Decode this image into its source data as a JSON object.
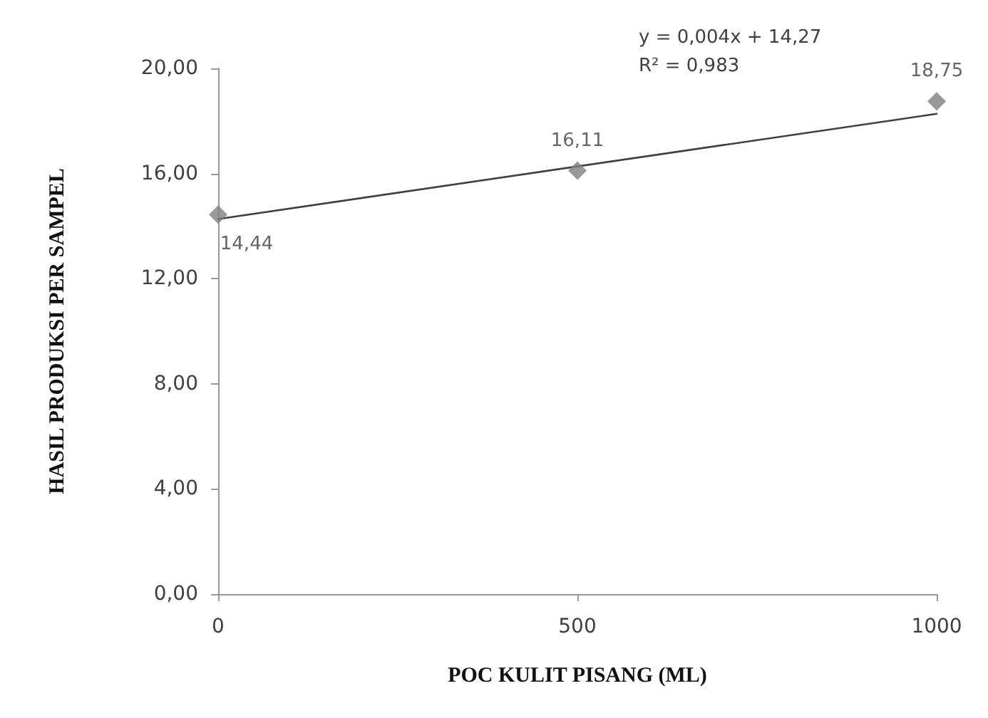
{
  "chart_data": {
    "type": "scatter",
    "xlabel": "POC KULIT PISANG (ML)",
    "ylabel": "HASIL PRODUKSI PER SAMPEL",
    "x": [
      0,
      500,
      1000
    ],
    "series": [
      {
        "color": "#7f7f7f",
        "values": [
          14.44,
          16.11,
          18.75
        ],
        "value_labels": [
          "14,44",
          "16,11",
          "18,75"
        ],
        "marker": "diamond"
      },
      {
        "type": "line",
        "color": "#404040",
        "x": [
          0,
          1000
        ],
        "values": [
          14.27,
          18.27
        ],
        "marker": "none",
        "line_style": "solid"
      }
    ],
    "annotations": [
      "y = 0,004x + 14,27",
      "R² = 0,983"
    ],
    "xlim": [
      0,
      1000
    ],
    "xticks": [
      0,
      500,
      1000
    ],
    "ylim": [
      0,
      20
    ],
    "yticks": [
      {
        "value": 0,
        "label": "0,00"
      },
      {
        "value": 4,
        "label": "4,00"
      },
      {
        "value": 8,
        "label": "8,00"
      },
      {
        "value": 12,
        "label": "12,00"
      },
      {
        "value": 16,
        "label": "16,00"
      },
      {
        "value": 20,
        "label": "20,00"
      }
    ],
    "grid": false
  }
}
